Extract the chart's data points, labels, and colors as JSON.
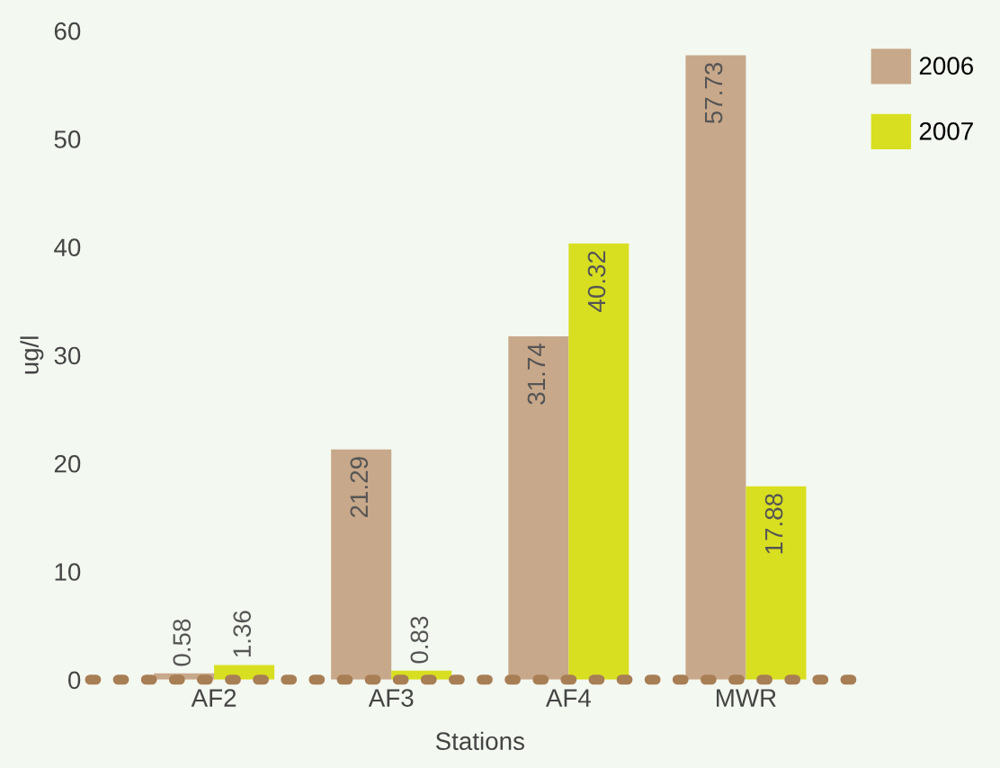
{
  "chart_data": {
    "type": "bar",
    "xlabel": "Stations",
    "ylabel": "ug/l",
    "categories": [
      "AF2",
      "AF3",
      "AF4",
      "MWR"
    ],
    "series": [
      {
        "name": "2006",
        "color": "#c8a88a",
        "values": [
          0.58,
          21.29,
          31.74,
          57.73
        ]
      },
      {
        "name": "2007",
        "color": "#d8df20",
        "values": [
          1.36,
          0.83,
          40.32,
          17.88
        ]
      }
    ],
    "ylim": [
      0,
      60
    ],
    "yticks": [
      0,
      10,
      20,
      30,
      40,
      50,
      60
    ],
    "grid": false,
    "legend": "top right",
    "data_labels": true
  }
}
